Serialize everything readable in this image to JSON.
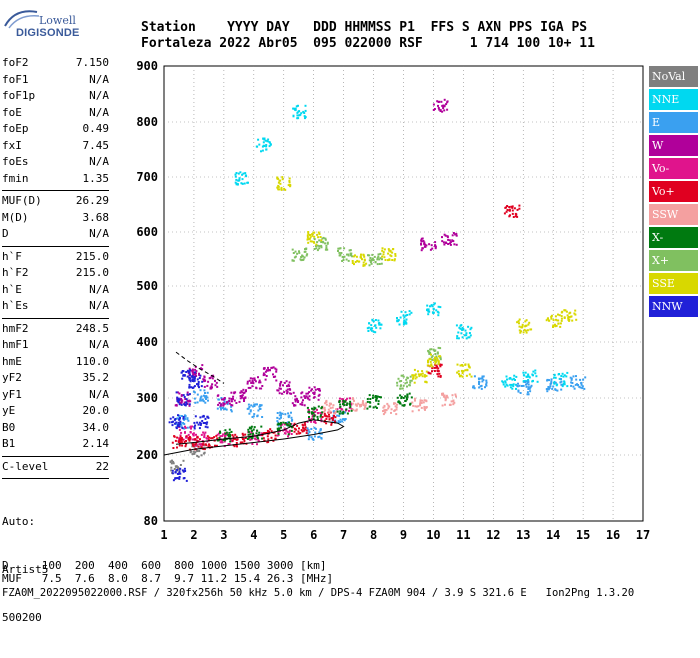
{
  "logo": {
    "line1": "Lowell",
    "line2": "DIGISONDE"
  },
  "header": {
    "labels": "Station    YYYY DAY   DDD HHMMSS P1  FFS S AXN PPS IGA PS",
    "values": "Fortaleza 2022 Abr05  095 022000 RSF      1 714 100 10+ 11"
  },
  "params_group1": [
    {
      "key": "foF2",
      "value": "7.150"
    },
    {
      "key": "foF1",
      "value": "N/A"
    },
    {
      "key": "foF1p",
      "value": "N/A"
    },
    {
      "key": "foE",
      "value": "N/A"
    },
    {
      "key": "foEp",
      "value": "0.49"
    },
    {
      "key": "fxI",
      "value": "7.45"
    },
    {
      "key": "foEs",
      "value": "N/A"
    },
    {
      "key": "fmin",
      "value": "1.35"
    }
  ],
  "params_group2": [
    {
      "key": "MUF(D)",
      "value": "26.29"
    },
    {
      "key": "M(D)",
      "value": "3.68"
    },
    {
      "key": "D",
      "value": "N/A"
    }
  ],
  "params_group3": [
    {
      "key": "h`F",
      "value": "215.0"
    },
    {
      "key": "h`F2",
      "value": "215.0"
    },
    {
      "key": "h`E",
      "value": "N/A"
    },
    {
      "key": "h`Es",
      "value": "N/A"
    }
  ],
  "params_group4": [
    {
      "key": "hmF2",
      "value": "248.5"
    },
    {
      "key": "hmF1",
      "value": "N/A"
    },
    {
      "key": "hmE",
      "value": "110.0"
    },
    {
      "key": "yF2",
      "value": "35.2"
    },
    {
      "key": "yF1",
      "value": "N/A"
    },
    {
      "key": "yE",
      "value": "20.0"
    },
    {
      "key": "B0",
      "value": "34.0"
    },
    {
      "key": "B1",
      "value": "2.14"
    }
  ],
  "params_group5": [
    {
      "key": "C-level",
      "value": "22"
    }
  ],
  "auto": {
    "line1": "Auto:",
    "line2": "Artist5",
    "line3": "500200"
  },
  "legend": [
    {
      "label": "NoVal",
      "color": "#7f7f7f"
    },
    {
      "label": "NNE",
      "color": "#00d8f0"
    },
    {
      "label": "E",
      "color": "#3aa0f0"
    },
    {
      "label": "W",
      "color": "#b0009a"
    },
    {
      "label": "Vo-",
      "color": "#e0148c"
    },
    {
      "label": "Vo+",
      "color": "#e00020"
    },
    {
      "label": "SSW",
      "color": "#f4a0a0"
    },
    {
      "label": "X-",
      "color": "#007a10"
    },
    {
      "label": "X+",
      "color": "#80c060"
    },
    {
      "label": "SSE",
      "color": "#d8d800"
    },
    {
      "label": "NNW",
      "color": "#2020d8"
    }
  ],
  "bottom": {
    "line1": "D     100  200  400  600  800 1000 1500 3000 [km]",
    "line2": "MUF   7.5  7.6  8.0  8.7  9.7 11.2 15.4 26.3 [MHz]",
    "line3": "FZA0M_2022095022000.RSF / 320fx256h 50 kHz 5.0 km / DPS-4 FZA0M 904 / 3.9 S 321.6 E   Ion2Png 1.3.20"
  },
  "chart_data": {
    "type": "scatter",
    "title": "",
    "xlabel": "",
    "ylabel": "",
    "xlim": [
      1,
      17
    ],
    "ylim": [
      80,
      900
    ],
    "x_ticks": [
      1,
      2,
      3,
      4,
      5,
      6,
      7,
      8,
      9,
      10,
      11,
      12,
      13,
      14,
      15,
      16,
      17
    ],
    "y_ticks": [
      80,
      200,
      300,
      400,
      500,
      600,
      700,
      800,
      900
    ],
    "grid": true,
    "legend_placement": "right",
    "series": [
      {
        "name": "NoVal",
        "color": "#7f7f7f",
        "points": [
          [
            1.4,
            180
          ],
          [
            2.1,
            210
          ]
        ]
      },
      {
        "name": "NNE",
        "color": "#00d8f0",
        "points": [
          [
            3.6,
            700
          ],
          [
            4.3,
            760
          ],
          [
            5.5,
            820
          ],
          [
            8.0,
            430
          ],
          [
            9.0,
            445
          ],
          [
            10.0,
            460
          ],
          [
            11.0,
            420
          ],
          [
            12.5,
            330
          ],
          [
            13.2,
            340
          ],
          [
            14.2,
            335
          ]
        ]
      },
      {
        "name": "E",
        "color": "#3aa0f0",
        "points": [
          [
            1.6,
            260
          ],
          [
            2.2,
            305
          ],
          [
            3.0,
            290
          ],
          [
            4.0,
            280
          ],
          [
            5.0,
            265
          ],
          [
            6.0,
            240
          ],
          [
            6.8,
            270
          ],
          [
            11.5,
            330
          ],
          [
            13.0,
            320
          ],
          [
            14.0,
            325
          ],
          [
            14.8,
            330
          ]
        ]
      },
      {
        "name": "W",
        "color": "#b0009a",
        "points": [
          [
            1.6,
            300
          ],
          [
            2.0,
            350
          ],
          [
            2.5,
            330
          ],
          [
            3.0,
            300
          ],
          [
            3.5,
            305
          ],
          [
            4.0,
            330
          ],
          [
            4.5,
            345
          ],
          [
            5.0,
            320
          ],
          [
            5.5,
            300
          ],
          [
            6.0,
            310
          ],
          [
            9.8,
            580
          ],
          [
            10.5,
            590
          ],
          [
            10.2,
            830
          ]
        ]
      },
      {
        "name": "Vo-",
        "color": "#e0148c",
        "points": [
          [
            1.7,
            240
          ],
          [
            2.2,
            230
          ],
          [
            3.0,
            228
          ],
          [
            4.0,
            232
          ],
          [
            5.0,
            245
          ],
          [
            6.0,
            270
          ],
          [
            7.0,
            290
          ]
        ]
      },
      {
        "name": "Vo+",
        "color": "#e00020",
        "points": [
          [
            1.5,
            225
          ],
          [
            2.0,
            222
          ],
          [
            2.5,
            224
          ],
          [
            3.5,
            228
          ],
          [
            4.5,
            235
          ],
          [
            5.5,
            250
          ],
          [
            6.5,
            265
          ],
          [
            10.0,
            350
          ],
          [
            12.6,
            640
          ]
        ]
      },
      {
        "name": "SSW",
        "color": "#f4a0a0",
        "points": [
          [
            6.5,
            285
          ],
          [
            7.5,
            290
          ],
          [
            8.5,
            285
          ],
          [
            9.5,
            290
          ],
          [
            10.5,
            300
          ]
        ]
      },
      {
        "name": "X-",
        "color": "#007a10",
        "points": [
          [
            3.0,
            235
          ],
          [
            4.0,
            240
          ],
          [
            5.0,
            250
          ],
          [
            6.0,
            275
          ],
          [
            7.0,
            285
          ],
          [
            8.0,
            295
          ],
          [
            9.0,
            300
          ]
        ]
      },
      {
        "name": "X+",
        "color": "#80c060",
        "points": [
          [
            5.5,
            560
          ],
          [
            6.2,
            580
          ],
          [
            7.0,
            560
          ],
          [
            8.0,
            550
          ],
          [
            9.0,
            330
          ],
          [
            10.0,
            380
          ]
        ]
      },
      {
        "name": "SSE",
        "color": "#d8d800",
        "points": [
          [
            5.0,
            690
          ],
          [
            6.0,
            590
          ],
          [
            7.5,
            550
          ],
          [
            8.5,
            560
          ],
          [
            9.5,
            340
          ],
          [
            10.0,
            370
          ],
          [
            11.0,
            350
          ],
          [
            13.0,
            430
          ],
          [
            14.0,
            440
          ],
          [
            14.5,
            450
          ]
        ]
      },
      {
        "name": "NNW",
        "color": "#2020d8",
        "points": [
          [
            1.4,
            260
          ],
          [
            1.6,
            300
          ],
          [
            1.8,
            340
          ],
          [
            2.0,
            330
          ],
          [
            2.2,
            260
          ],
          [
            1.5,
            165
          ]
        ]
      }
    ],
    "curves": [
      {
        "name": "profile",
        "color": "#000000",
        "points": [
          [
            1.0,
            200
          ],
          [
            2.0,
            210
          ],
          [
            3.0,
            216
          ],
          [
            4.0,
            222
          ],
          [
            5.0,
            228
          ],
          [
            6.0,
            236
          ],
          [
            6.8,
            244
          ],
          [
            7.0,
            250
          ],
          [
            6.8,
            256
          ],
          [
            6.0,
            262
          ],
          [
            5.5,
            256
          ],
          [
            5.0,
            244
          ],
          [
            4.5,
            238
          ],
          [
            4.0,
            233
          ],
          [
            3.0,
            228
          ],
          [
            2.0,
            222
          ],
          [
            1.4,
            219
          ]
        ]
      },
      {
        "name": "extrapolated",
        "color": "#000000",
        "dashed": true,
        "points": [
          [
            1.4,
            382
          ],
          [
            1.8,
            366
          ],
          [
            2.2,
            352
          ],
          [
            2.6,
            340
          ],
          [
            3.0,
            326
          ]
        ]
      }
    ]
  }
}
